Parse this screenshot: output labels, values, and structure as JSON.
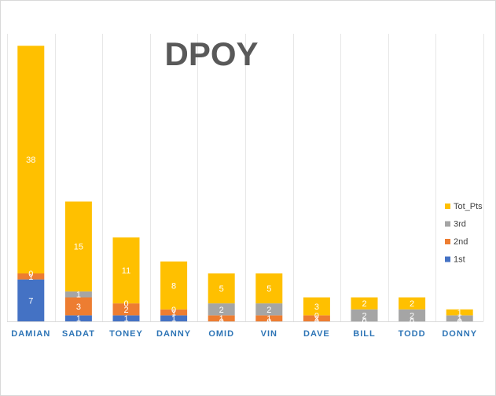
{
  "chart_data": {
    "type": "bar",
    "stacked": true,
    "title": "DPOY",
    "xlabel": "",
    "ylabel": "",
    "categories": [
      "DAMIAN",
      "SADAT",
      "TONEY",
      "DANNY",
      "OMID",
      "VIN",
      "DAVE",
      "BILL",
      "TODD",
      "DONNY"
    ],
    "series": [
      {
        "name": "1st",
        "color": "#4472c4",
        "values": [
          7,
          1,
          1,
          1,
          0,
          0,
          0,
          0,
          0,
          0
        ]
      },
      {
        "name": "2nd",
        "color": "#ed7d31",
        "values": [
          1,
          3,
          2,
          1,
          1,
          1,
          1,
          0,
          0,
          0
        ]
      },
      {
        "name": "3rd",
        "color": "#a5a5a5",
        "values": [
          0,
          1,
          0,
          0,
          2,
          2,
          0,
          2,
          2,
          1
        ]
      },
      {
        "name": "Tot_Pts",
        "color": "#ffc000",
        "values": [
          38,
          15,
          11,
          8,
          5,
          5,
          3,
          2,
          2,
          1
        ]
      }
    ],
    "legend_position": "right",
    "legend_order": [
      "Tot_Pts",
      "3rd",
      "2nd",
      "1st"
    ],
    "grid": "vertical",
    "ylim": [
      0,
      48
    ]
  }
}
